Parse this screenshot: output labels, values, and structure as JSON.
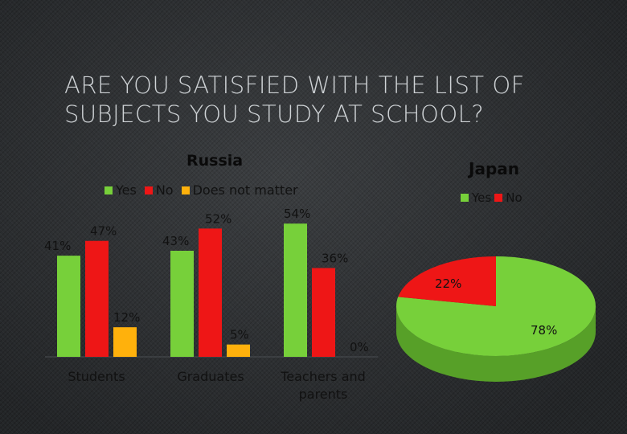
{
  "slide": {
    "title_line1": "Are you satisfied with the list of",
    "title_line2": "subjects you study at school?"
  },
  "colors": {
    "yes": "#77d03a",
    "no": "#ee1616",
    "does_not_matter": "#ffb10c"
  },
  "chart_data": [
    {
      "type": "bar",
      "title": "Russia",
      "categories": [
        "Students",
        "Graduates",
        "Teachers and parents"
      ],
      "category_lines": [
        [
          "Students"
        ],
        [
          "Graduates"
        ],
        [
          "Teachers and",
          "parents"
        ]
      ],
      "series": [
        {
          "name": "Yes",
          "color_key": "yes",
          "values": [
            41,
            43,
            54
          ],
          "labels": [
            "41%",
            "43%",
            "54%"
          ]
        },
        {
          "name": "No",
          "color_key": "no",
          "values": [
            47,
            52,
            36
          ],
          "labels": [
            "47%",
            "52%",
            "36%"
          ]
        },
        {
          "name": "Does not matter",
          "color_key": "does_not_matter",
          "values": [
            12,
            5,
            0
          ],
          "labels": [
            "12%",
            "5%",
            "0%"
          ]
        }
      ],
      "ylim": [
        0,
        60
      ],
      "grid": false,
      "legend": "top"
    },
    {
      "type": "pie",
      "title": "Japan",
      "labels": [
        "Yes",
        "No"
      ],
      "values": [
        78,
        22
      ],
      "value_labels": [
        "78%",
        "22%"
      ],
      "color_keys": [
        "yes",
        "no"
      ],
      "style": "3d",
      "legend": "top"
    }
  ]
}
